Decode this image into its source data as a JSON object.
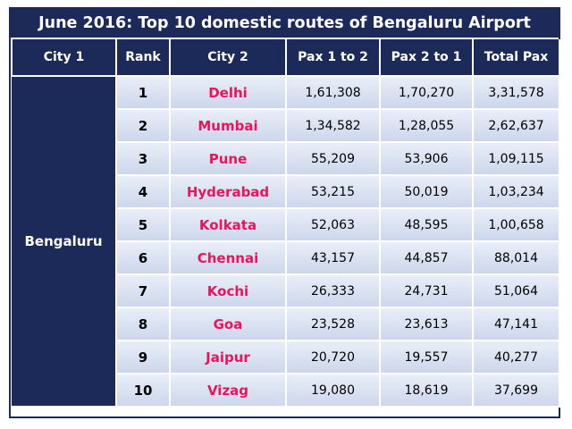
{
  "title": "June 2016: Top 10 domestic routes of Bengaluru Airport",
  "colors": {
    "header_bg": "#1c2a5a",
    "destination_text": "#e8155c",
    "cell_bg": "#d9e1f2"
  },
  "columns": [
    "City 1",
    "Rank",
    "City 2",
    "Pax 1 to 2",
    "Pax 2 to 1",
    "Total Pax"
  ],
  "city1": "Bengaluru",
  "rows": [
    {
      "rank": "1",
      "city2": "Delhi",
      "pax_1_to_2": "1,61,308",
      "pax_2_to_1": "1,70,270",
      "total": "3,31,578"
    },
    {
      "rank": "2",
      "city2": "Mumbai",
      "pax_1_to_2": "1,34,582",
      "pax_2_to_1": "1,28,055",
      "total": "2,62,637"
    },
    {
      "rank": "3",
      "city2": "Pune",
      "pax_1_to_2": "55,209",
      "pax_2_to_1": "53,906",
      "total": "1,09,115"
    },
    {
      "rank": "4",
      "city2": "Hyderabad",
      "pax_1_to_2": "53,215",
      "pax_2_to_1": "50,019",
      "total": "1,03,234"
    },
    {
      "rank": "5",
      "city2": "Kolkata",
      "pax_1_to_2": "52,063",
      "pax_2_to_1": "48,595",
      "total": "1,00,658"
    },
    {
      "rank": "6",
      "city2": "Chennai",
      "pax_1_to_2": "43,157",
      "pax_2_to_1": "44,857",
      "total": "88,014"
    },
    {
      "rank": "7",
      "city2": "Kochi",
      "pax_1_to_2": "26,333",
      "pax_2_to_1": "24,731",
      "total": "51,064"
    },
    {
      "rank": "8",
      "city2": "Goa",
      "pax_1_to_2": "23,528",
      "pax_2_to_1": "23,613",
      "total": "47,141"
    },
    {
      "rank": "9",
      "city2": "Jaipur",
      "pax_1_to_2": "20,720",
      "pax_2_to_1": "19,557",
      "total": "40,277"
    },
    {
      "rank": "10",
      "city2": "Vizag",
      "pax_1_to_2": "19,080",
      "pax_2_to_1": "18,619",
      "total": "37,699"
    }
  ],
  "chart_data": {
    "type": "table",
    "title": "June 2016: Top 10 domestic routes of Bengaluru Airport",
    "columns": [
      "City 1",
      "Rank",
      "City 2",
      "Pax 1 to 2",
      "Pax 2 to 1",
      "Total Pax"
    ],
    "categories": [
      "Delhi",
      "Mumbai",
      "Pune",
      "Hyderabad",
      "Kolkata",
      "Chennai",
      "Kochi",
      "Goa",
      "Jaipur",
      "Vizag"
    ],
    "series": [
      {
        "name": "Pax 1 to 2",
        "values": [
          161308,
          134582,
          55209,
          53215,
          52063,
          43157,
          26333,
          23528,
          20720,
          19080
        ]
      },
      {
        "name": "Pax 2 to 1",
        "values": [
          170270,
          128055,
          53906,
          50019,
          48595,
          44857,
          24731,
          23613,
          19557,
          18619
        ]
      },
      {
        "name": "Total Pax",
        "values": [
          331578,
          262637,
          109115,
          103234,
          100658,
          88014,
          51064,
          47141,
          40277,
          37699
        ]
      }
    ]
  }
}
